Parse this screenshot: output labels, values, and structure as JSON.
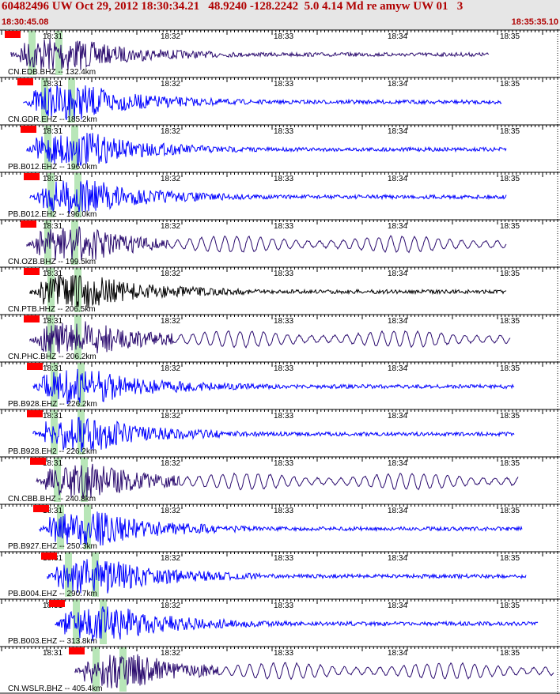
{
  "header": {
    "title": "60482496 UW Oct 29, 2012 18:30:34.21   48.9240 -128.2242  5.0 4.14 Md re amyw UW 01   3",
    "start_time": "18:30:45.08",
    "end_time": "18:35:35.10"
  },
  "time_labels": [
    "18:31",
    "18:32",
    "18:33",
    "18:34",
    "18:35"
  ],
  "colors": {
    "header_text": "#b00000",
    "header_bg": "#e6e6e6",
    "pick": "#ff0000",
    "phase_window": "#b8e6b8",
    "trace_blue": "#0000ff",
    "trace_purple": "#2a0a6e",
    "trace_black": "#000000"
  },
  "traces": [
    {
      "label": "CN.EDB.BHZ -- 132.4km",
      "color": "purple"
    },
    {
      "label": "CN.GDR.EHZ -- 185.2km",
      "color": "blue"
    },
    {
      "label": "PB.B012.EHZ -- 196.0km",
      "color": "blue"
    },
    {
      "label": "PB.B012.EH2 -- 196.0km",
      "color": "blue"
    },
    {
      "label": "CN.OZB.BHZ -- 199.5km",
      "color": "purple"
    },
    {
      "label": "CN.PTB.HHZ -- 206.5km",
      "color": "black"
    },
    {
      "label": "CN.PHC.BHZ -- 206.2km",
      "color": "purple"
    },
    {
      "label": "PB.B928.EHZ -- 226.2km",
      "color": "blue"
    },
    {
      "label": "PB.B928.EH2 -- 226.2km",
      "color": "blue"
    },
    {
      "label": "CN.CBB.BHZ -- 240.8km",
      "color": "purple"
    },
    {
      "label": "PB.B927.EHZ -- 250.3km",
      "color": "blue"
    },
    {
      "label": "PB.B004.EHZ -- 290.7km",
      "color": "blue"
    },
    {
      "label": "PB.B003.EHZ -- 313.8km",
      "color": "blue"
    },
    {
      "label": "CN.WSLR.BHZ -- 405.4km",
      "color": "purple"
    }
  ]
}
